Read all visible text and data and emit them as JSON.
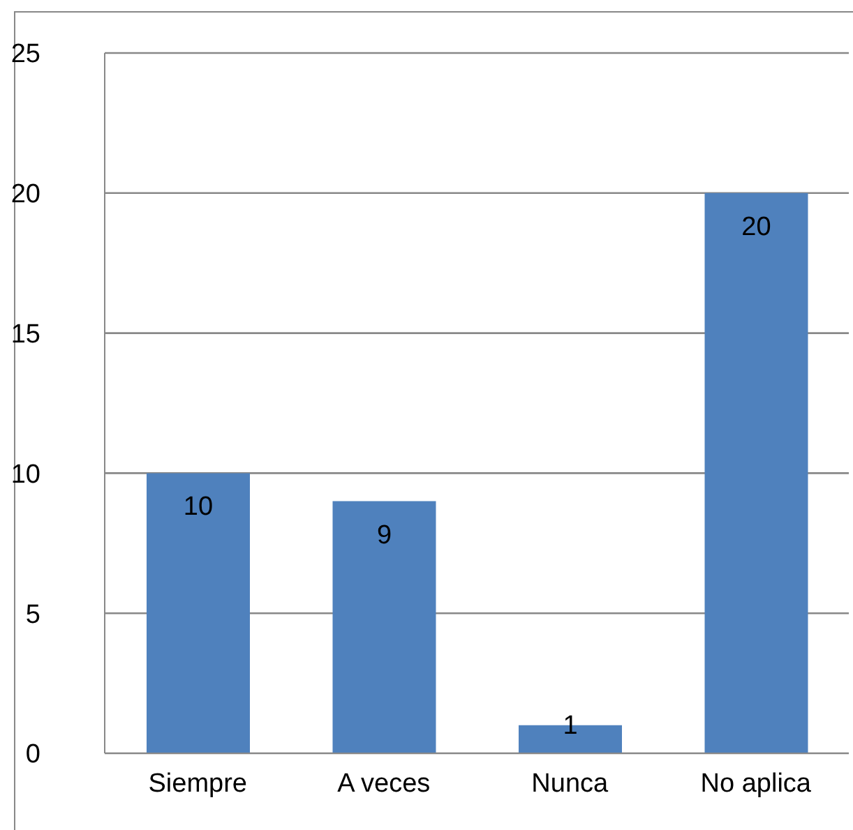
{
  "chart_data": {
    "type": "bar",
    "categories": [
      "Siempre",
      "A veces",
      "Nunca",
      "No aplica"
    ],
    "values": [
      10,
      9,
      1,
      20
    ],
    "color": "#4f81bd",
    "ylim": [
      0,
      25
    ],
    "yticks": [
      0,
      5,
      10,
      15,
      20,
      25
    ],
    "grid": "y",
    "data_labels": true,
    "legend": false
  }
}
